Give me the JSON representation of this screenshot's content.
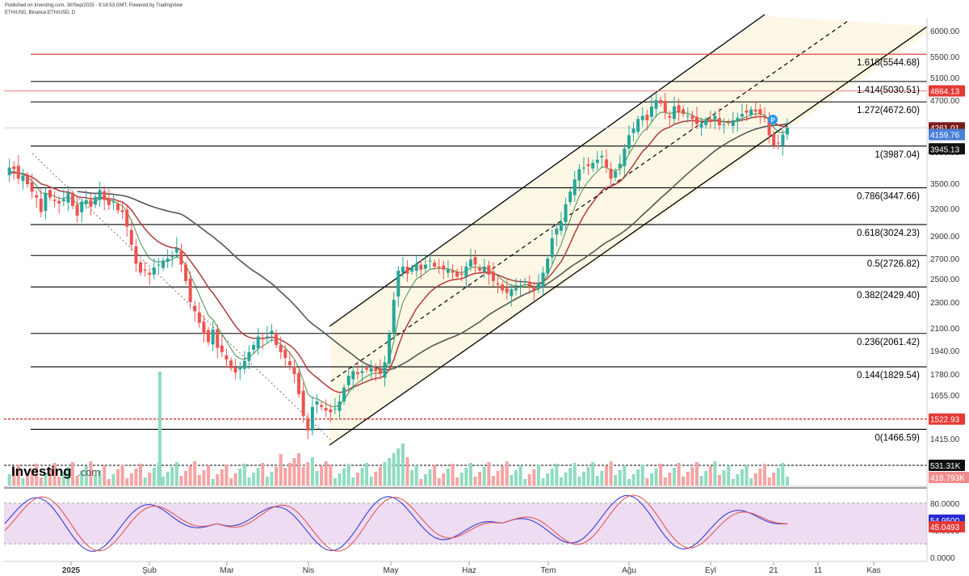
{
  "header": {
    "published": "Published on Investing.com, 30/Sep/2025 - 9:18:53 GMT, Powered by TradingView",
    "symbol": "ETH/USD, Binance:ETH/USD, D"
  },
  "logo": {
    "text": "Investing",
    "suffix": ".com"
  },
  "chart_data": {
    "type": "candlestick",
    "title": "",
    "price_axis": {
      "ticks": [
        6000,
        5500,
        5100,
        4700,
        4300,
        3900,
        3500,
        3200,
        2900,
        2700,
        2500,
        2300,
        2100,
        1940,
        1780,
        1655,
        1415
      ],
      "labels": [
        "6000.00",
        "5500.00",
        "5100.00",
        "4700.00",
        "4300.00",
        "3900.00",
        "3500.00",
        "3200.00",
        "2900.00",
        "2700.00",
        "2500.00",
        "2300.00",
        "2100.00",
        "1940.00",
        "1780.00",
        "1655.00",
        "1415.00"
      ]
    },
    "x_axis": {
      "labels": [
        "2025",
        "Şub",
        "Mar",
        "Nis",
        "May",
        "Haz",
        "Tem",
        "Ağu",
        "Eyl",
        "21",
        "11",
        "Kas"
      ]
    },
    "fibonacci_levels": [
      {
        "ratio": "1.618",
        "price": 5544.68,
        "label": "1.618(5544.68)",
        "color": "#d32f2f"
      },
      {
        "ratio": "1.414",
        "price": 5030.51,
        "label": "1.414(5030.51)",
        "color": "#000000"
      },
      {
        "ratio": "1.272",
        "price": 4672.6,
        "label": "1.272(4672.60)",
        "color": "#000000"
      },
      {
        "ratio": "1",
        "price": 3987.04,
        "label": "1(3987.04)",
        "color": "#000000"
      },
      {
        "ratio": "0.786",
        "price": 3447.66,
        "label": "0.786(3447.66)",
        "color": "#000000"
      },
      {
        "ratio": "0.618",
        "price": 3024.23,
        "label": "0.618(3024.23)",
        "color": "#000000"
      },
      {
        "ratio": "0.5",
        "price": 2726.82,
        "label": "0.5(2726.82)",
        "color": "#000000"
      },
      {
        "ratio": "0.382",
        "price": 2429.4,
        "label": "0.382(2429.40)",
        "color": "#000000"
      },
      {
        "ratio": "0.236",
        "price": 2061.42,
        "label": "0.236(2061.42)",
        "color": "#000000"
      },
      {
        "ratio": "0.144",
        "price": 1829.54,
        "label": "0.144(1829.54)",
        "color": "#000000"
      },
      {
        "ratio": "0",
        "price": 1466.59,
        "label": "0(1466.59)",
        "color": "#000000"
      }
    ],
    "price_tags": [
      {
        "label": "4864.13",
        "price": 4864.13,
        "color": "#e53935"
      },
      {
        "label": "4261.01",
        "price": 4261.01,
        "color": "#7b1c1c"
      },
      {
        "label": "4160.36",
        "price": 4160.36,
        "color": "#2e7d32"
      },
      {
        "label": "4159.76",
        "price": 4159.76,
        "color": "#4a7fd8"
      },
      {
        "label": "3945.13",
        "price": 3945.13,
        "color": "#111111"
      },
      {
        "label": "1522.93",
        "price": 1522.93,
        "color": "#e53935"
      }
    ],
    "horizontal_lines": [
      {
        "price": 4864.13,
        "style": "solid",
        "color": "#f08080"
      },
      {
        "price": 1522.93,
        "style": "dotted",
        "color": "#d32f2f"
      },
      {
        "price": 4261.01,
        "style": "solid",
        "color": "#c8d4ea"
      }
    ],
    "closes": [
      3620,
      3700,
      3680,
      3560,
      3600,
      3490,
      3400,
      3330,
      3160,
      3380,
      3330,
      3290,
      3260,
      3310,
      3390,
      3230,
      3120,
      3280,
      3300,
      3220,
      3340,
      3420,
      3300,
      3240,
      3280,
      3180,
      3160,
      3000,
      2820,
      2650,
      2560,
      2580,
      2540,
      2610,
      2640,
      2680,
      2700,
      2720,
      2790,
      2640,
      2480,
      2300,
      2230,
      2140,
      2060,
      2000,
      2090,
      1960,
      1930,
      1880,
      1820,
      1790,
      1830,
      1870,
      1930,
      1980,
      2040,
      2020,
      2040,
      2080,
      1980,
      1930,
      1890,
      1840,
      1780,
      1660,
      1540,
      1460,
      1590,
      1620,
      1590,
      1570,
      1560,
      1580,
      1620,
      1700,
      1770,
      1800,
      1780,
      1800,
      1810,
      1820,
      1800,
      1780,
      1860,
      2060,
      2320,
      2580,
      2620,
      2550,
      2610,
      2650,
      2590,
      2640,
      2680,
      2620,
      2610,
      2590,
      2590,
      2560,
      2520,
      2540,
      2620,
      2690,
      2640,
      2580,
      2620,
      2540,
      2480,
      2450,
      2400,
      2380,
      2410,
      2420,
      2440,
      2480,
      2430,
      2400,
      2460,
      2560,
      2700,
      2880,
      2980,
      3050,
      3250,
      3400,
      3550,
      3680,
      3700,
      3720,
      3760,
      3800,
      3850,
      3700,
      3560,
      3650,
      3750,
      3950,
      4150,
      4250,
      4400,
      4450,
      4380,
      4600,
      4700,
      4650,
      4500,
      4420,
      4600,
      4500,
      4480,
      4450,
      4400,
      4320,
      4320,
      4380,
      4350,
      4450,
      4300,
      4310,
      4340,
      4380,
      4420,
      4480,
      4500,
      4550,
      4520,
      4480,
      4420,
      4150,
      3990,
      4030,
      4160,
      4261
    ],
    "volume_labels": [
      "531.31K",
      "418.793K"
    ],
    "rsi_axis": {
      "ticks": [
        80,
        40,
        0
      ],
      "labels": [
        "80.0000",
        "40.0000",
        "0.0000"
      ]
    },
    "rsi_tags": [
      {
        "label": "54.9500",
        "value": 54.95,
        "color": "#2a2ad1"
      },
      {
        "label": "45.0493",
        "value": 45.0493,
        "color": "#e53935"
      }
    ],
    "colors": {
      "up": "#26a69a",
      "down": "#ef5350",
      "ema_short": "#2e7d32",
      "ema_mid": "#b23a3a",
      "ma_long": "#555555",
      "channel_fill": "#fdf7e2",
      "rsi_band": "#eddcf2"
    }
  }
}
